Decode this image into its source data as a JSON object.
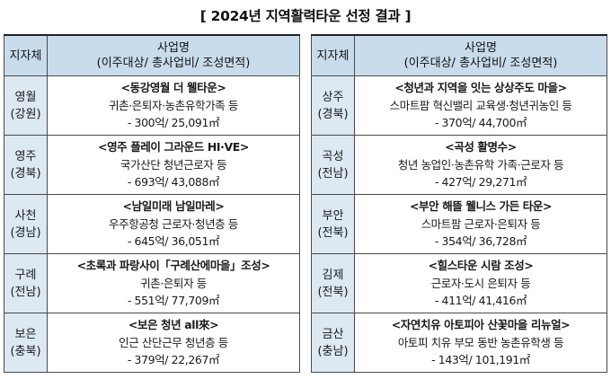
{
  "title": "[ 2024년 지역활력타운 선정 결과 ]",
  "header": {
    "region": "지자체",
    "project_line1": "사업명",
    "project_line2": "(이주대상/ 총사업비/ 조성면적)"
  },
  "left": [
    {
      "city": "영월",
      "province": "(강원)",
      "name": "<동강영월 더 웰타운>",
      "target": "귀촌·은퇴자·농촌유학가족 등",
      "cost": "- 300억/ 25,091㎡"
    },
    {
      "city": "영주",
      "province": "(경북)",
      "name": "<영주 플레이 그라운드 HI·VE>",
      "target": "국가산단 청년근로자 등",
      "cost": "- 693억/ 43,088㎡"
    },
    {
      "city": "사천",
      "province": "(경남)",
      "name": "<남일미래 남일마레>",
      "target": "우주항공청 근로자·청년층 등",
      "cost": "- 645억/ 36,051㎡"
    },
    {
      "city": "구례",
      "province": "(전남)",
      "name": "<초록과 파랑사이「구례산에마을」조성>",
      "target": "귀촌·은퇴자 등",
      "cost": "- 551억/ 77,709㎡"
    },
    {
      "city": "보은",
      "province": "(충북)",
      "name": "<보은 청년 all來>",
      "target": "인근 산단근무 청년층 등",
      "cost": "- 379억/ 22,267㎡"
    }
  ],
  "right": [
    {
      "city": "상주",
      "province": "(경북)",
      "name": "<청년과 지역을 잇는 상상주도 마을>",
      "target": "스마트팜 혁신밸리 교육생·청년귀농인 등",
      "cost": "- 370억/ 44,700㎡"
    },
    {
      "city": "곡성",
      "province": "(전남)",
      "name": "<곡성 활명수>",
      "target": "청년 농업인·농촌유학 가족·근로자 등",
      "cost": "- 427억/ 29,271㎡"
    },
    {
      "city": "부안",
      "province": "(전북)",
      "name": "<부안 해뜰 웰니스 가든 타운>",
      "target": "스마트팜 근로자·은퇴자 등",
      "cost": "- 354억/ 36,728㎡"
    },
    {
      "city": "김제",
      "province": "(전북)",
      "name": "<힐스타운 시람 조성>",
      "target": "근로자·도시 은퇴자 등",
      "cost": "- 411억/ 41,416㎡"
    },
    {
      "city": "금산",
      "province": "(충남)",
      "name": "<자연치유 아토피아 산꽃마을 리뉴얼>",
      "target": "아토피 치유 부모 동반 농촌유학생 등",
      "cost": "- 143억/ 101,191㎡"
    }
  ]
}
